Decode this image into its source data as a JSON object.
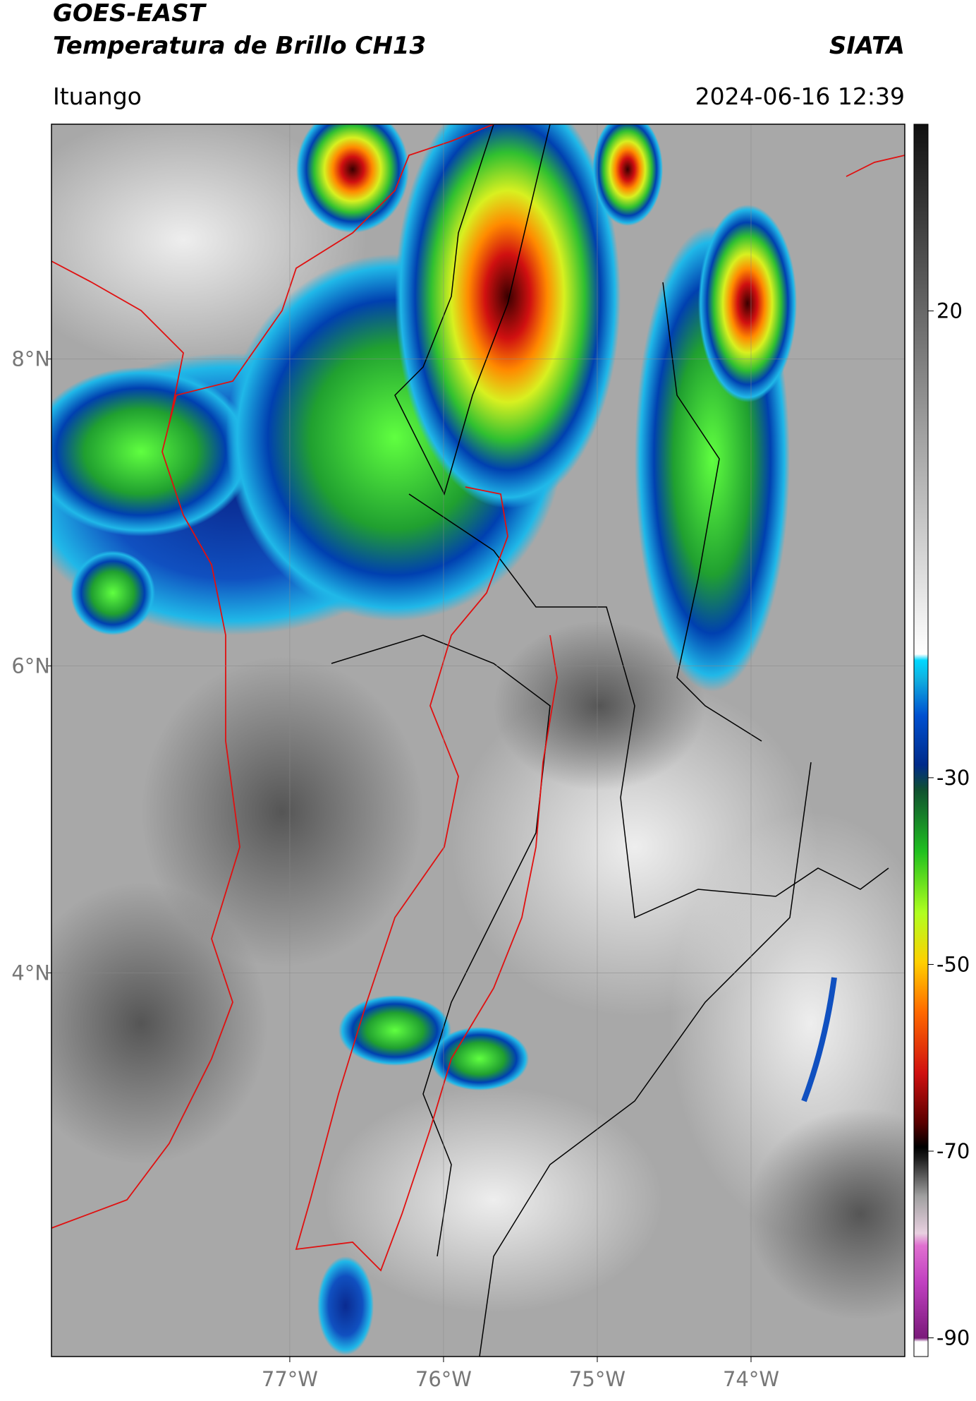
{
  "header": {
    "title": "GOES-EAST",
    "subtitle": "Temperatura de Brillo CH13",
    "source": "SIATA",
    "location": "Ituango",
    "datetime": "2024-06-16 12:39"
  },
  "map": {
    "xlim": [
      -78.55,
      -73
    ],
    "ylim": [
      1.5,
      9.53
    ],
    "xticks": [
      {
        "value": -77,
        "label": "77°W"
      },
      {
        "value": -76,
        "label": "76°W"
      },
      {
        "value": -75,
        "label": "75°W"
      },
      {
        "value": -74,
        "label": "74°W"
      }
    ],
    "yticks": [
      {
        "value": 8,
        "label": "8°N"
      },
      {
        "value": 6,
        "label": "6°N"
      },
      {
        "value": 4,
        "label": "4°N"
      }
    ],
    "grid": true
  },
  "colorbar": {
    "clim": [
      -92,
      40
    ],
    "ticks": [
      20,
      -30,
      -50,
      -70,
      -90
    ]
  }
}
